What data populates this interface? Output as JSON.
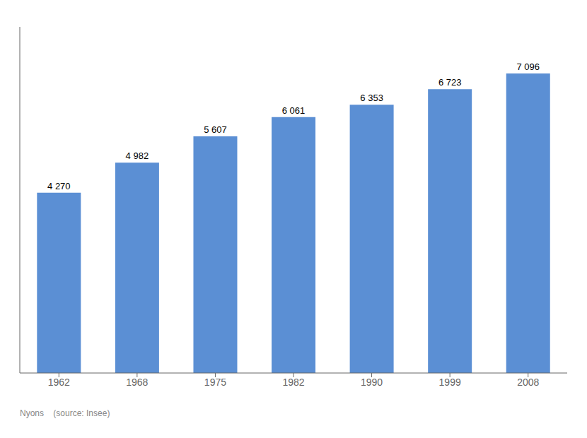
{
  "chart_data": {
    "type": "bar",
    "categories": [
      "1962",
      "1968",
      "1975",
      "1982",
      "1990",
      "1999",
      "2008"
    ],
    "values": [
      4270,
      4982,
      5607,
      6061,
      6353,
      6723,
      7096
    ],
    "value_labels": [
      "4 270",
      "4 982",
      "5 607",
      "6 061",
      "6 353",
      "6 723",
      "7 096"
    ],
    "color": "#5b8fd4",
    "ylim": [
      0,
      8200
    ],
    "data_labels": true,
    "tick_labels": "x",
    "grid": false,
    "annotations": [
      "Nyons    (source: Insee)"
    ]
  }
}
